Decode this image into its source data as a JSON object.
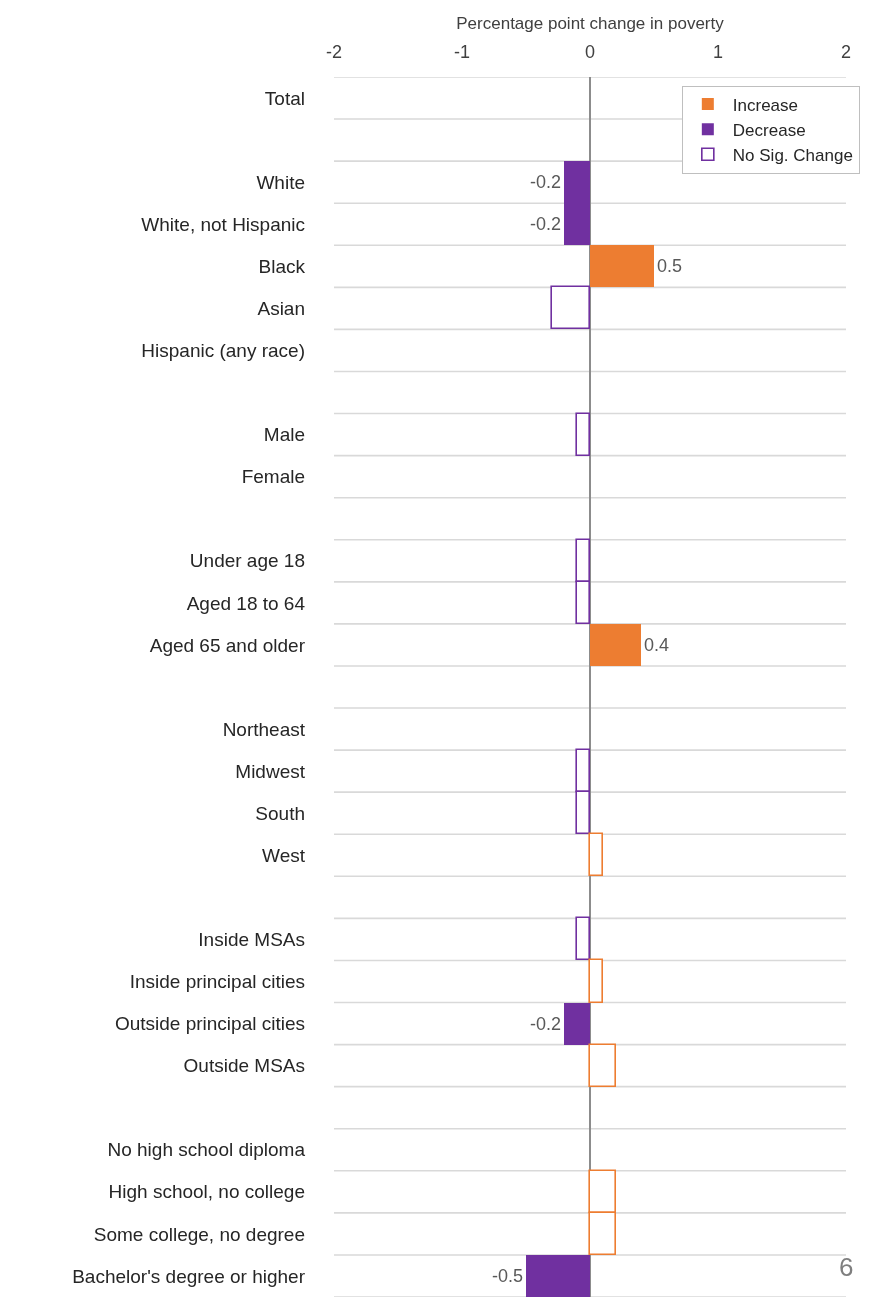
{
  "chart_data": {
    "type": "bar",
    "orientation": "horizontal",
    "xlabel": "Percentage point change in poverty",
    "categories": [
      "Total",
      null,
      "White",
      "White, not Hispanic",
      "Black",
      "Asian",
      "Hispanic (any race)",
      null,
      "Male",
      "Female",
      null,
      "Under age 18",
      "Aged 18 to 64",
      "Aged 65 and older",
      null,
      "Northeast",
      "Midwest",
      "South",
      "West",
      null,
      "Inside MSAs",
      "Inside principal cities",
      "Outside principal cities",
      "Outside MSAs",
      null,
      "No high school diploma",
      "High school, no college",
      "Some college, no degree",
      "Bachelor's degree or higher"
    ],
    "series": [
      {
        "name": "Increase",
        "color": "#ed7d31",
        "values": [
          null,
          null,
          null,
          null,
          0.5,
          null,
          null,
          null,
          null,
          null,
          null,
          null,
          null,
          0.4,
          null,
          null,
          null,
          null,
          null,
          null,
          null,
          null,
          null,
          null,
          null,
          null,
          null,
          null,
          null
        ],
        "value_labels": [
          null,
          null,
          null,
          null,
          "0.5",
          null,
          null,
          null,
          null,
          null,
          null,
          null,
          null,
          "0.4",
          null,
          null,
          null,
          null,
          null,
          null,
          null,
          null,
          null,
          null,
          null,
          null,
          null,
          null,
          null
        ]
      },
      {
        "name": "Decrease",
        "color": "#7030a0",
        "values": [
          null,
          null,
          -0.2,
          -0.2,
          null,
          null,
          null,
          null,
          null,
          null,
          null,
          null,
          null,
          null,
          null,
          null,
          null,
          null,
          null,
          null,
          null,
          null,
          -0.2,
          null,
          null,
          null,
          null,
          null,
          -0.5
        ],
        "value_labels": [
          null,
          null,
          "-0.2",
          "-0.2",
          null,
          null,
          null,
          null,
          null,
          null,
          null,
          null,
          null,
          null,
          null,
          null,
          null,
          null,
          null,
          null,
          null,
          null,
          "-0.2",
          null,
          null,
          null,
          null,
          null,
          "-0.5"
        ]
      },
      {
        "name": "No Sig. Change",
        "color": "#ffffff",
        "colors": [
          null,
          null,
          null,
          null,
          null,
          "#7030a0",
          null,
          null,
          "#7030a0",
          null,
          null,
          "#7030a0",
          "#7030a0",
          null,
          null,
          null,
          "#7030a0",
          "#7030a0",
          "#ed7d31",
          null,
          "#7030a0",
          "#ed7d31",
          null,
          "#ed7d31",
          null,
          null,
          "#ed7d31",
          "#ed7d31",
          null
        ],
        "values": [
          null,
          null,
          null,
          null,
          null,
          -0.3,
          null,
          null,
          -0.1,
          null,
          null,
          -0.1,
          -0.1,
          null,
          null,
          null,
          -0.1,
          -0.1,
          0.1,
          null,
          -0.1,
          0.1,
          null,
          0.2,
          null,
          null,
          0.2,
          0.2,
          null
        ]
      }
    ],
    "xlim": [
      -2,
      2
    ],
    "xticks": [
      -2,
      -1,
      0,
      1,
      2
    ],
    "grid": "y",
    "legend": "top right",
    "annotations": [
      "6"
    ]
  }
}
